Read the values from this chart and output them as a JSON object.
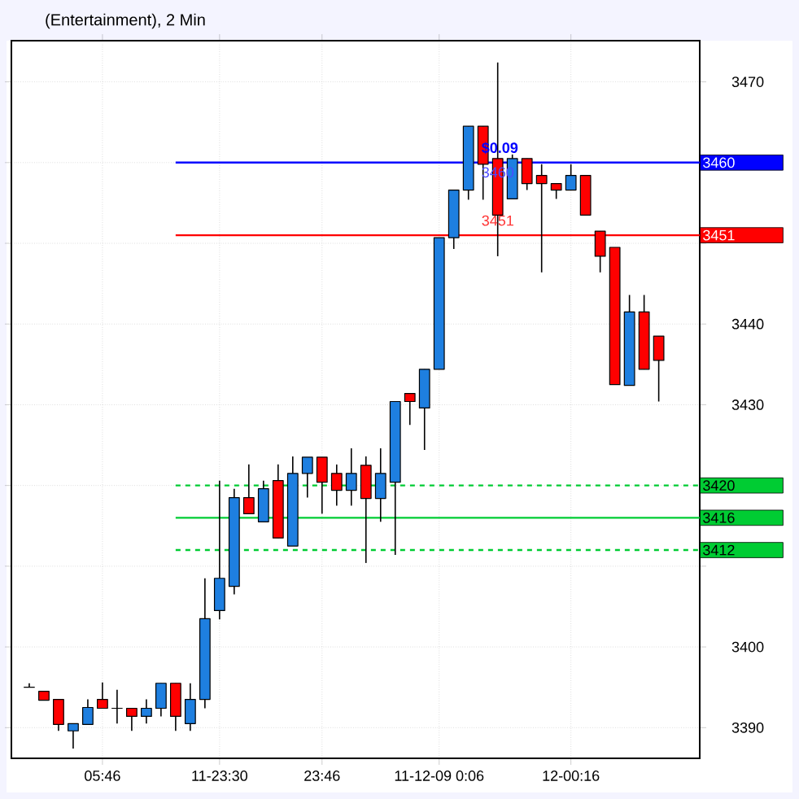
{
  "chart_data": {
    "type": "candlestick",
    "title": "(Entertainment), 2 Min",
    "categories": [
      null,
      null,
      null,
      null,
      null,
      "05:46",
      null,
      null,
      null,
      null,
      null,
      null,
      null,
      "11-23:30",
      null,
      null,
      null,
      null,
      null,
      null,
      "23:46",
      null,
      null,
      null,
      null,
      null,
      null,
      null,
      "11-12-09  0:06",
      null,
      null,
      null,
      null,
      null,
      null,
      null,
      null,
      "12-00:16",
      null,
      null,
      null,
      null,
      null,
      null
    ],
    "ohlc": [
      [
        3395,
        3395.5,
        3395,
        3395
      ],
      [
        3394.5,
        3394.5,
        3393.4,
        3393.4
      ],
      [
        3393.5,
        3393.5,
        3389.6,
        3390.4
      ],
      [
        3389.6,
        3390.5,
        3387.4,
        3390.5
      ],
      [
        3390.4,
        3393.5,
        3390.4,
        3392.5
      ],
      [
        3393.5,
        3395.6,
        3392.4,
        3392.4
      ],
      [
        3392.4,
        3394.7,
        3390.5,
        3392.4
      ],
      [
        3392.4,
        3392.4,
        3389.6,
        3391.4
      ],
      [
        3391.4,
        3393.5,
        3390.5,
        3392.4
      ],
      [
        3392.4,
        3395.5,
        3391.4,
        3395.5
      ],
      [
        3395.5,
        3395.5,
        3389.6,
        3391.4
      ],
      [
        3390.5,
        3395.5,
        3389.6,
        3393.5
      ],
      [
        3393.5,
        3408.5,
        3392.4,
        3403.5
      ],
      [
        3404.5,
        3420.6,
        3403.4,
        3408.5
      ],
      [
        3407.5,
        3419.6,
        3406.5,
        3418.5
      ],
      [
        3418.5,
        3422.6,
        3416.5,
        3416.5
      ],
      [
        3415.5,
        3420.6,
        3415.5,
        3419.6
      ],
      [
        3420.6,
        3422.6,
        3413.5,
        3413.5
      ],
      [
        3412.5,
        3423.6,
        3412.5,
        3421.5
      ],
      [
        3421.5,
        3423.5,
        3418.5,
        3423.5
      ],
      [
        3423.5,
        3423.5,
        3416.5,
        3420.4
      ],
      [
        3421.5,
        3422.6,
        3417.5,
        3419.4
      ],
      [
        3419.4,
        3424.6,
        3417.5,
        3421.5
      ],
      [
        3422.5,
        3423.6,
        3410.4,
        3418.4
      ],
      [
        3418.4,
        3424.6,
        3415.5,
        3421.5
      ],
      [
        3420.4,
        3430.4,
        3411.4,
        3430.4
      ],
      [
        3431.4,
        3431.4,
        3427.5,
        3430.4
      ],
      [
        3429.6,
        3434.4,
        3424.4,
        3434.4
      ],
      [
        3434.4,
        3450.7,
        3434.4,
        3450.7
      ],
      [
        3450.7,
        3456.6,
        3449.3,
        3456.6
      ],
      [
        3456.6,
        3464.5,
        3455.4,
        3464.5
      ],
      [
        3464.5,
        3464.5,
        3455.4,
        3459.8
      ],
      [
        3460.5,
        3472.4,
        3448.4,
        3453.5
      ],
      [
        3455.5,
        3461,
        3455.5,
        3460.5
      ],
      [
        3460.5,
        3460.5,
        3456.6,
        3457.4
      ],
      [
        3458.4,
        3459.8,
        3446.4,
        3457.4
      ],
      [
        3457.4,
        3457.4,
        3455.5,
        3456.6
      ],
      [
        3456.6,
        3459.8,
        3456.6,
        3458.4
      ],
      [
        3458.4,
        3458.4,
        3453.5,
        3453.5
      ],
      [
        3451.5,
        3451.5,
        3446.4,
        3448.4
      ],
      [
        3449.5,
        3449.5,
        3432.5,
        3432.5
      ],
      [
        3432.4,
        3443.6,
        3432.4,
        3441.5
      ],
      [
        3441.5,
        3443.6,
        3434.4,
        3434.4
      ],
      [
        3438.5,
        3438.5,
        3430.4,
        3435.5
      ]
    ],
    "colors": [
      "#000000",
      "#ff0000",
      "#ff0000",
      "#1e7fe0",
      "#1e7fe0",
      "#ff0000",
      "#000000",
      "#ff0000",
      "#1e7fe0",
      "#1e7fe0",
      "#ff0000",
      "#1e7fe0",
      "#1e7fe0",
      "#1e7fe0",
      "#1e7fe0",
      "#ff0000",
      "#1e7fe0",
      "#ff0000",
      "#1e7fe0",
      "#1e7fe0",
      "#ff0000",
      "#ff0000",
      "#1e7fe0",
      "#ff0000",
      "#1e7fe0",
      "#1e7fe0",
      "#ff0000",
      "#1e7fe0",
      "#1e7fe0",
      "#1e7fe0",
      "#1e7fe0",
      "#ff0000",
      "#ff0000",
      "#1e7fe0",
      "#ff0000",
      "#ff0000",
      "#ff0000",
      "#1e7fe0",
      "#ff0000",
      "#ff0000",
      "#ff0000",
      "#1e7fe0",
      "#ff0000",
      "#ff0000"
    ],
    "ylim": [
      3386.2,
      3475.1
    ],
    "yticks": [
      3390,
      3400,
      {
        "value": 3410,
        "label": null
      },
      {
        "value": 3420,
        "label": null
      },
      3430,
      3440,
      {
        "value": 3450,
        "label": null
      },
      {
        "value": 3460,
        "label": null
      },
      3470
    ],
    "grid": true,
    "ref_lines": [
      {
        "axis": "y",
        "value": 3460,
        "label": "3460",
        "color": "#0000ff",
        "line_style": "solid"
      },
      {
        "axis": "y",
        "value": 3451,
        "label": "3451",
        "color": "#ff0000",
        "line_style": "solid"
      },
      {
        "axis": "y",
        "value": 3420,
        "label": "3420",
        "color": "#00cc33",
        "line_style": "dashed"
      },
      {
        "axis": "y",
        "value": 3416,
        "label": "3416",
        "color": "#00cc33",
        "line_style": "solid"
      },
      {
        "axis": "y",
        "value": 3412,
        "label": "3412",
        "color": "#00cc33",
        "line_style": "dashed"
      }
    ],
    "annotations": [
      {
        "text": "$0.09",
        "x": "11-12-09  0:06",
        "y": 3460
      },
      {
        "text": "3460",
        "x": "11-12-09  0:06",
        "y": 3460
      },
      {
        "text": "3451",
        "x": "11-12-09  0:06",
        "y": 3451
      }
    ]
  }
}
